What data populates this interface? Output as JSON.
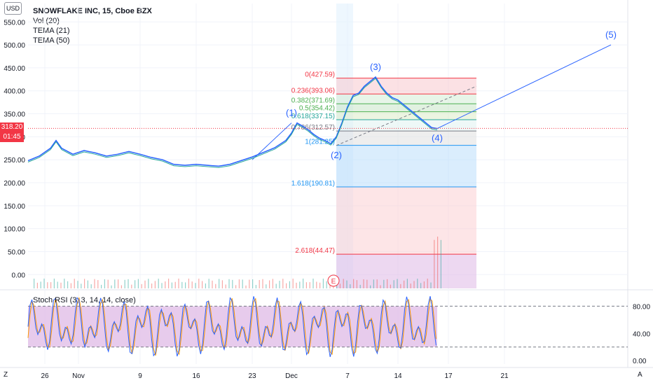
{
  "header": {
    "currency": "USD",
    "title": "SNOWFLAKE INC, 15, Cboe BZX",
    "indicators": [
      "Vol (20)",
      "TEMA (21)",
      "TEMA (50)"
    ]
  },
  "price_tag": {
    "price": "318.20",
    "countdown": "01:45"
  },
  "corner_labels": {
    "left_bottom": "Z",
    "right_bottom": "A"
  },
  "chart_data": [
    {
      "type": "line",
      "title": "SNOWFLAKE INC, 15, Cboe BZX",
      "y_ticks": [
        0,
        50,
        100,
        150,
        200,
        250,
        300,
        350,
        400,
        450,
        500,
        550
      ],
      "y_tick_labels": [
        "0.00",
        "50.00",
        "100.00",
        "150.00",
        "200.00",
        "250.00",
        "300.00",
        "350.00",
        "400.00",
        "450.00",
        "500.00",
        "550.00"
      ],
      "ylim": [
        -30,
        590
      ],
      "x_ticks": [
        2,
        5,
        9,
        12,
        16,
        19,
        23,
        26,
        30,
        33,
        37,
        40
      ],
      "x_tick_labels": [
        "26",
        "Nov",
        "9",
        "16",
        "23",
        "Dec",
        "7",
        "14",
        "17",
        "21"
      ],
      "x_tick_day_index": [
        3,
        9,
        20,
        30,
        40,
        47,
        57,
        66,
        75,
        85
      ],
      "xlim_days": [
        0,
        107
      ],
      "price_path": [
        [
          0,
          248
        ],
        [
          2,
          258
        ],
        [
          4,
          275
        ],
        [
          5,
          292
        ],
        [
          6,
          275
        ],
        [
          8,
          262
        ],
        [
          10,
          270
        ],
        [
          12,
          265
        ],
        [
          14,
          258
        ],
        [
          16,
          262
        ],
        [
          18,
          268
        ],
        [
          20,
          262
        ],
        [
          22,
          255
        ],
        [
          24,
          250
        ],
        [
          26,
          240
        ],
        [
          28,
          238
        ],
        [
          30,
          240
        ],
        [
          32,
          238
        ],
        [
          34,
          236
        ],
        [
          36,
          240
        ],
        [
          38,
          248
        ],
        [
          40,
          256
        ],
        [
          42,
          266
        ],
        [
          44,
          276
        ],
        [
          46,
          292
        ],
        [
          47,
          308
        ],
        [
          48,
          330
        ],
        [
          49,
          323
        ],
        [
          50,
          315
        ],
        [
          51,
          305
        ],
        [
          52,
          297
        ],
        [
          53,
          292
        ],
        [
          54,
          285
        ],
        [
          55,
          300
        ],
        [
          56,
          330
        ],
        [
          57,
          365
        ],
        [
          58,
          390
        ],
        [
          59,
          395
        ],
        [
          60,
          410
        ],
        [
          61,
          420
        ],
        [
          62,
          430
        ],
        [
          63,
          410
        ],
        [
          64,
          395
        ],
        [
          65,
          385
        ],
        [
          66,
          380
        ],
        [
          67,
          370
        ],
        [
          68,
          360
        ],
        [
          69,
          350
        ],
        [
          70,
          340
        ],
        [
          71,
          330
        ],
        [
          72,
          320
        ],
        [
          73,
          318
        ]
      ],
      "current_price": 318.2,
      "wave_labels": [
        {
          "label": "(1)",
          "day": 47,
          "price": 330
        },
        {
          "label": "(2)",
          "day": 55,
          "price": 281
        },
        {
          "label": "(3)",
          "day": 62,
          "price": 430
        },
        {
          "label": "(4)",
          "day": 73,
          "price": 318
        },
        {
          "label": "(5)",
          "day": 104,
          "price": 500
        }
      ],
      "projection_line": [
        [
          73,
          318
        ],
        [
          104,
          500
        ]
      ],
      "trend_line": [
        [
          40,
          250
        ],
        [
          47,
          330
        ]
      ],
      "fib_levels": [
        {
          "ratio": "0",
          "price": 427.59,
          "label": "0(427.59)"
        },
        {
          "ratio": "0.236",
          "price": 393.06,
          "label": "0.236(393.06)"
        },
        {
          "ratio": "0.382",
          "price": 371.69,
          "label": "0.382(371.69)"
        },
        {
          "ratio": "0.5",
          "price": 354.42,
          "label": "0.5(354.42)"
        },
        {
          "ratio": "0.618",
          "price": 337.15,
          "label": "0.618(337.15)"
        },
        {
          "ratio": "0.786",
          "price": 312.57,
          "label": "0.786(312.57)"
        },
        {
          "ratio": "1",
          "price": 281.25,
          "label": "1(281.25)"
        },
        {
          "ratio": "1.618",
          "price": 190.81,
          "label": "1.618(190.81)"
        },
        {
          "ratio": "2.618",
          "price": 44.47,
          "label": "2.618(44.47)"
        }
      ],
      "fib_range_days": [
        55,
        80
      ],
      "earnings_marker": "E"
    },
    {
      "type": "line",
      "title": "Stoch RSI (3, 3, 14, 14, close)",
      "y_ticks": [
        0,
        40,
        80
      ],
      "y_tick_labels": [
        "0.00",
        "40.00",
        "80.00"
      ],
      "ylim": [
        -5,
        100
      ],
      "band": [
        20,
        80
      ]
    }
  ],
  "colors": {
    "price": "#26a69a",
    "price_dark": "#131722",
    "tema21": "#2962ff",
    "tema50": "#ff6d00",
    "fib_red": "#f23645",
    "fib_green": "#4caf50",
    "fib_blue": "#2196f3",
    "wave": "#2962ff",
    "rsi_k": "#2962ff",
    "rsi_d": "#ff9800",
    "rsi_band": "#e1bee7",
    "last_price": "#f23645"
  }
}
